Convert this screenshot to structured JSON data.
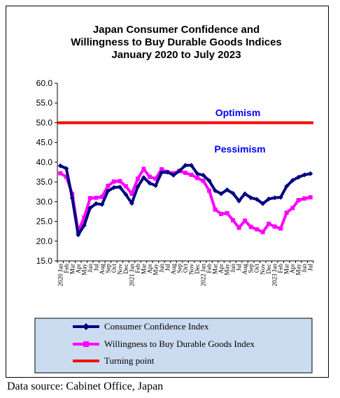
{
  "chart_data": {
    "type": "line",
    "title": [
      "Japan Consumer Confidence and",
      "Willingness to Buy Durable Goods Indices",
      "January 2020 to July 2023"
    ],
    "ylim": [
      15,
      60
    ],
    "yticks": [
      15,
      20,
      25,
      30,
      35,
      40,
      45,
      50,
      55,
      60
    ],
    "ytick_labels": [
      "15.0",
      "20.0",
      "25.0",
      "30.0",
      "35.0",
      "40.0",
      "45.0",
      "50.0",
      "55.0",
      "60.0"
    ],
    "grid": false,
    "x_tick_labels": [
      "2020 Jan",
      "Feb",
      "Mar",
      "Apr",
      "May",
      "Jun",
      "Jul",
      "Aug",
      "Sep",
      "Oct",
      "Nov",
      "Dec",
      "2021 Jan",
      "Feb",
      "Mar",
      "Apr",
      "May",
      "Jun",
      "Jul",
      "Aug",
      "Sep",
      "Oct",
      "Nov",
      "Dec",
      "2022 Jan",
      "Feb",
      "Mar",
      "Apr",
      "May",
      "Jun",
      "Jul",
      "Aug",
      "Sep",
      "Oct",
      "Nov",
      "Dec",
      "2023 Jan",
      "Feb",
      "Mar",
      "Apr",
      "May",
      "Jun",
      "Jul"
    ],
    "series": [
      {
        "name": "Consumer Confidence Index",
        "color": "#000080",
        "marker": "diamond",
        "values": [
          39.1,
          38.4,
          30.9,
          21.6,
          24.0,
          28.4,
          29.5,
          29.3,
          32.7,
          33.6,
          33.7,
          31.8,
          29.6,
          33.8,
          36.1,
          34.7,
          34.1,
          37.4,
          37.5,
          36.7,
          37.8,
          39.2,
          39.2,
          37.1,
          36.7,
          35.3,
          32.8,
          32.0,
          33.0,
          32.1,
          30.2,
          32.0,
          31.0,
          30.6,
          29.5,
          30.7,
          31.0,
          31.1,
          33.9,
          35.4,
          36.2,
          36.8,
          37.1
        ]
      },
      {
        "name": "Willingness to Buy Durable Goods Index",
        "color": "#ff00ff",
        "marker": "square",
        "values": [
          37.2,
          36.3,
          31.9,
          22.5,
          26.0,
          30.9,
          31.0,
          31.2,
          34.0,
          35.1,
          35.2,
          33.9,
          32.0,
          35.8,
          38.3,
          36.3,
          35.8,
          38.2,
          37.5,
          37.2,
          37.8,
          37.3,
          36.8,
          36.0,
          35.3,
          32.8,
          28.0,
          26.9,
          27.1,
          25.3,
          23.4,
          25.2,
          23.6,
          23.0,
          22.3,
          24.4,
          23.7,
          23.2,
          27.2,
          28.4,
          30.4,
          30.8,
          31.1
        ]
      },
      {
        "name": "Turning point",
        "color": "#ff0000",
        "marker": "none",
        "values": [
          50,
          50
        ]
      }
    ],
    "annotations": [
      {
        "text": "Optimism",
        "color": "#0000ff"
      },
      {
        "text": "Pessimism",
        "color": "#0000ff"
      }
    ],
    "legend_placement": "bottom"
  },
  "footer": {
    "source": "Data source: Cabinet Office, Japan"
  }
}
